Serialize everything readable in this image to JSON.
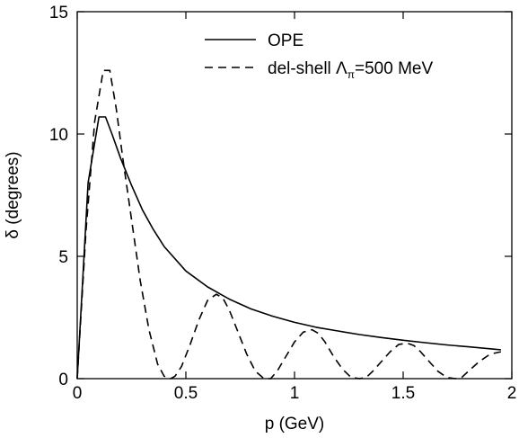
{
  "chart_data": {
    "type": "line",
    "xlabel": "p (GeV)",
    "ylabel": "δ (degrees)",
    "xlim": [
      0,
      2
    ],
    "ylim": [
      0,
      15
    ],
    "xticks": [
      0,
      0.5,
      1,
      1.5,
      2
    ],
    "xtick_labels": [
      "0",
      "0.5",
      "1",
      "1.5",
      "2"
    ],
    "yticks": [
      0,
      5,
      10,
      15
    ],
    "ytick_labels": [
      "0",
      "5",
      "10",
      "15"
    ],
    "grid": false,
    "legend_position": "top-right",
    "series": [
      {
        "name": "OPE",
        "style": "solid",
        "color": "#000000",
        "x": [
          0,
          0.05,
          0.1,
          0.13,
          0.16,
          0.2,
          0.25,
          0.3,
          0.35,
          0.4,
          0.5,
          0.6,
          0.7,
          0.8,
          0.9,
          1.0,
          1.1,
          1.2,
          1.3,
          1.4,
          1.5,
          1.6,
          1.7,
          1.8,
          1.9,
          1.95
        ],
        "y": [
          0,
          8.0,
          10.7,
          10.7,
          10.0,
          9.0,
          7.9,
          6.9,
          6.1,
          5.4,
          4.4,
          3.75,
          3.25,
          2.85,
          2.55,
          2.3,
          2.1,
          1.95,
          1.8,
          1.68,
          1.57,
          1.47,
          1.38,
          1.3,
          1.22,
          1.18
        ]
      },
      {
        "name_main": "del-shell Λ",
        "name_sub": "π",
        "name_tail": "=500 MeV",
        "style": "dashed",
        "color": "#000000",
        "x": [
          0,
          0.04,
          0.08,
          0.12,
          0.15,
          0.18,
          0.21,
          0.25,
          0.29,
          0.33,
          0.37,
          0.4,
          0.43,
          0.45,
          0.48,
          0.52,
          0.56,
          0.6,
          0.64,
          0.67,
          0.7,
          0.74,
          0.78,
          0.82,
          0.86,
          0.89,
          0.92,
          0.96,
          1.0,
          1.04,
          1.08,
          1.11,
          1.14,
          1.18,
          1.22,
          1.26,
          1.3,
          1.33,
          1.36,
          1.4,
          1.44,
          1.48,
          1.52,
          1.55,
          1.58,
          1.62,
          1.66,
          1.7,
          1.74,
          1.77,
          1.8,
          1.85,
          1.9,
          1.95
        ],
        "y": [
          0,
          6.0,
          10.5,
          12.6,
          12.6,
          11.0,
          9.0,
          6.5,
          4.0,
          2.0,
          0.6,
          0.1,
          0.0,
          0.1,
          0.5,
          1.4,
          2.4,
          3.2,
          3.45,
          3.3,
          2.8,
          1.9,
          1.0,
          0.3,
          0.0,
          0.0,
          0.3,
          0.9,
          1.5,
          1.9,
          2.0,
          1.85,
          1.5,
          0.9,
          0.4,
          0.05,
          0.0,
          0.05,
          0.3,
          0.7,
          1.1,
          1.4,
          1.45,
          1.35,
          1.1,
          0.7,
          0.3,
          0.05,
          0.0,
          0.05,
          0.3,
          0.7,
          1.0,
          1.1
        ]
      }
    ]
  }
}
